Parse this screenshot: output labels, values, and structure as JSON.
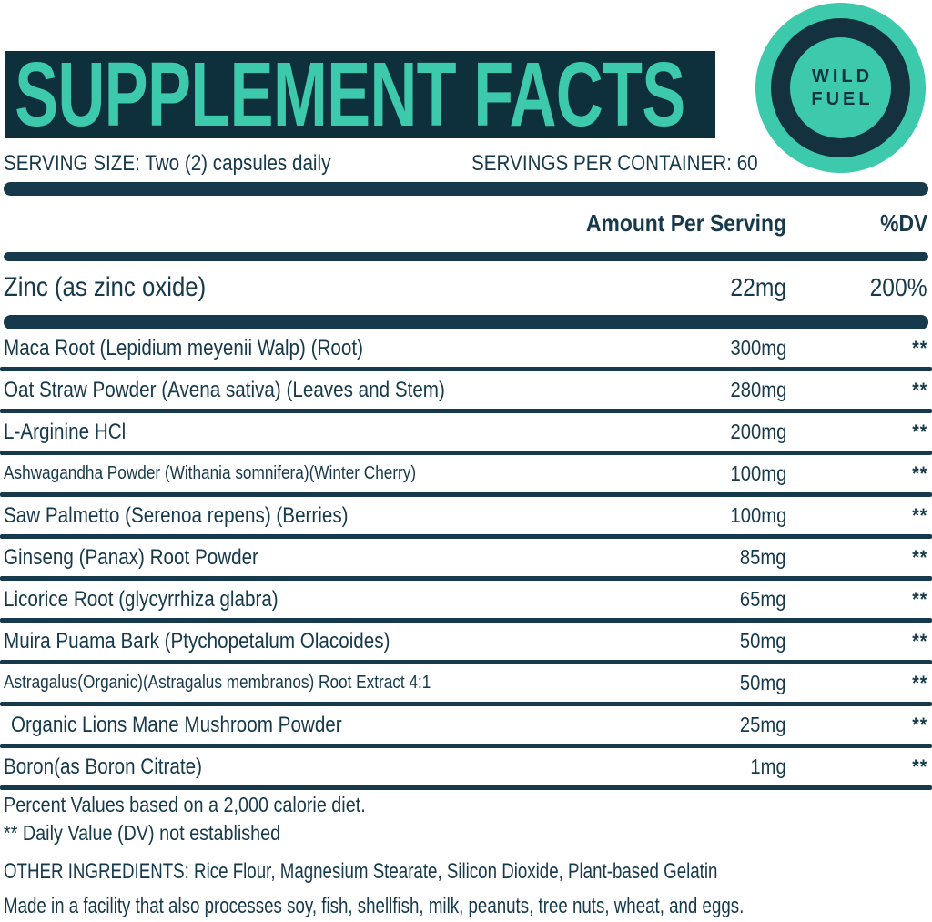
{
  "title": "SUPPLEMENT FACTS",
  "logo": {
    "line1": "WILD",
    "line2": "FUEL"
  },
  "serving": {
    "size": "SERVING SIZE: Two (2) capsules daily",
    "per_container": "SERVINGS PER CONTAINER: 60"
  },
  "table": {
    "amount_header": "Amount Per Serving",
    "dv_header": "%DV",
    "primary": {
      "name": "Zinc (as zinc oxide)",
      "amount": "22mg",
      "dv": "200%"
    },
    "rows": [
      {
        "name": "Maca Root (Lepidium meyenii Walp) (Root)",
        "amount": "300mg",
        "dv": "**"
      },
      {
        "name": "Oat Straw Powder (Avena sativa) (Leaves and Stem)",
        "amount": "280mg",
        "dv": "**"
      },
      {
        "name": "L-Arginine HCl",
        "amount": "200mg",
        "dv": "**"
      },
      {
        "name": "Ashwagandha Powder (Withania somnifera)(Winter Cherry)",
        "amount": "100mg",
        "dv": "**"
      },
      {
        "name": "Saw Palmetto (Serenoa repens) (Berries)",
        "amount": "100mg",
        "dv": "**"
      },
      {
        "name": "Ginseng (Panax) Root Powder",
        "amount": "85mg",
        "dv": "**"
      },
      {
        "name": "Licorice Root (glycyrrhiza glabra)",
        "amount": "65mg",
        "dv": "**"
      },
      {
        "name": "Muira Puama Bark (Ptychopetalum Olacoides)",
        "amount": "50mg",
        "dv": "**"
      },
      {
        "name": "Astragalus(Organic)(Astragalus membranos) Root Extract 4:1",
        "amount": "50mg",
        "dv": "**"
      },
      {
        "name": "Organic Lions Mane Mushroom Powder",
        "amount": "25mg",
        "dv": "**"
      },
      {
        "name": "Boron(as Boron Citrate)",
        "amount": "1mg",
        "dv": "**"
      }
    ]
  },
  "footnotes": {
    "percent": "Percent Values based on a 2,000 calorie diet.",
    "dv_note": "** Daily Value (DV) not established",
    "other_ingredients": "OTHER INGREDIENTS: Rice Flour, Magnesium Stearate, Silicon Dioxide, Plant-based Gelatin",
    "allergen": "Made in a facility that also processes soy, fish, shellfish, milk, peanuts, tree nuts, wheat, and eggs."
  },
  "colors": {
    "band_navy": "#0e2f3c",
    "ink_navy": "#16394b",
    "teal": "#3dc9ac"
  }
}
